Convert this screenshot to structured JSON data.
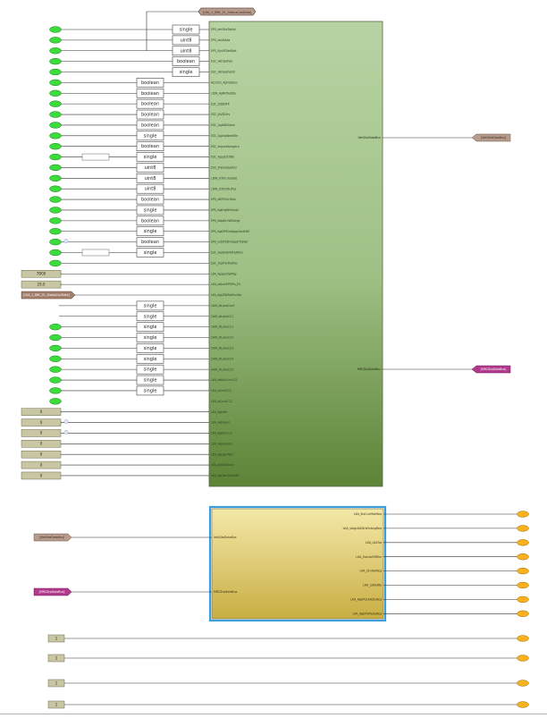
{
  "top_goto_tag": "[LKA_1_DBC_EL_StatusCanData]",
  "converter_types": [
    "single",
    "uint8",
    "uint8",
    "boolean",
    "single",
    "boolean",
    "boolean",
    "boolean",
    "boolean",
    "boolean",
    "single",
    "boolean",
    "single",
    "uint8",
    "uint8",
    "uint8",
    "boolean",
    "single",
    "boolean",
    "single",
    "boolean",
    "single",
    "single",
    "single",
    "single",
    "single",
    "single",
    "single",
    "single",
    "single",
    "single"
  ],
  "upper_ports": [
    "EPS_str0SteTrqVal",
    "EPS_strA4Abs",
    "EPS_SysVFDetStat",
    "ESC_VehSpdVal",
    "ESC_VehSpdValid",
    "ACCDrv_AgtrStatus",
    "LDW_AgMcPadSte",
    "ESC_stEBDFlt",
    "ESC_stVDCfrs",
    "ESC_AgtABSIntvn",
    "ESC_AgAngNextSte",
    "ESC_ImpredLongAcn",
    "ESC_AgLatStrtBk",
    "ESC_ImpredLatAcn",
    "LDW_stTrnLmpStat",
    "LDW_stTrnSltLtPos",
    "EPS_stEPSCtrlStat",
    "EPS_AgEngWhlAngV",
    "EPS_stapDrvWhlAngr",
    "EPS_AgtEPSOrdAppOvrdtHV",
    "EPS_vstEPSDrvApptrTrqVal",
    "ESC_AgVehBrkPrsAllIns",
    "ESC_drgPrsrPedPos",
    "LKA_AgSanDwMsg",
    "LKA_stActvEPSPrs_ES",
    "LKA_AgLDWSteFunSte"
  ],
  "lower_ports": [
    "CAM_stLaneConf",
    "CAM_stLaneCC1",
    "CAM_stLaneCC1",
    "CAM_stLaneCC2",
    "CAM_stLaneCC3",
    "CAM_stLaneCC4",
    "CAM_stLaneCC5",
    "LKA_stdAltCurvCC1",
    "LKA_stCrvtCC2",
    "LKA_stCurvCC3",
    "LKA_AgtnPn",
    "LKA_AgtAprvl",
    "LKA_AgtSenCur",
    "LKA_AgLaneVel",
    "LKA_AgLdgrTom",
    "LKA_AgDelStrAvl",
    "LKA_AgCamTrackOff"
  ],
  "constant_inputs": [
    "7B00",
    "29.0",
    "[LKA_1_DBC_EL_StatusCanData]"
  ],
  "zero_constants": [
    "0",
    "0",
    "0",
    "0",
    "0",
    "0",
    "0"
  ],
  "upper_outputs": [
    "VehSiteDataBus",
    "MRCDrpDataBus"
  ],
  "upper_goto_tags": [
    "[VehSiteDataBus]",
    "[MRCDrpDataBus]"
  ],
  "lower_from_tags": [
    "[VehSiteDataBus]",
    "[MRCDrpDataBus]"
  ],
  "lower_inputs": [
    "VehSiteDataBus",
    "MRCDrpDataBus"
  ],
  "lower_outputs": [
    "LKA_SteCurMdeReq",
    "LKA_stagLKAStrWhlAngReq",
    "LKA_LKATrq",
    "LKA_HandsOffWrn",
    "LKA_DrvTakReq",
    "LKA_LKAStRe",
    "LKA_AgEPSLKAStsReq",
    "LKA_AgEPSModeReq"
  ],
  "bottom_constants": [
    "1",
    "1",
    "1",
    "1"
  ],
  "colors": {
    "inport_oval": "#3ddc3d",
    "outport_oval": "#f7b21e",
    "upper_block_top": "#b7d3a3",
    "upper_block_bottom": "#5c8336",
    "lower_block_top": "#f3e8a8",
    "lower_block_bottom": "#c9ae43",
    "lower_block_frame": "#3b9ee0",
    "constant_fill": "#c9c6a4",
    "goto_brown": "#b79b8c",
    "goto_magenta": "#b23a8e"
  }
}
